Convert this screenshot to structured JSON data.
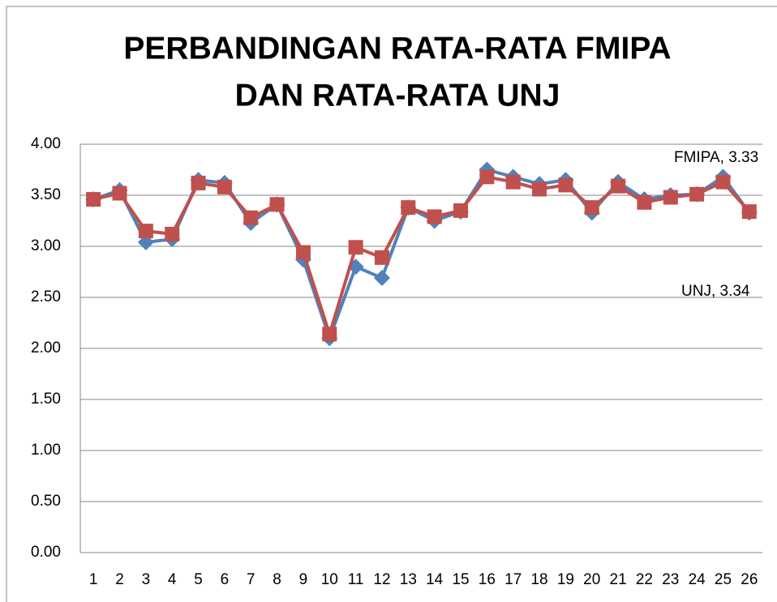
{
  "chart_data": {
    "type": "line",
    "title": [
      "PERBANDINGAN RATA-RATA FMIPA",
      "DAN RATA-RATA UNJ"
    ],
    "categories": [
      "1",
      "2",
      "3",
      "4",
      "5",
      "6",
      "7",
      "8",
      "9",
      "10",
      "11",
      "12",
      "13",
      "14",
      "15",
      "16",
      "17",
      "18",
      "19",
      "20",
      "21",
      "22",
      "23",
      "24",
      "25",
      "26"
    ],
    "series": [
      {
        "name": "FMIPA",
        "color": "#4f81bd",
        "marker": "diamond",
        "values": [
          3.46,
          3.55,
          3.04,
          3.07,
          3.65,
          3.62,
          3.23,
          3.41,
          2.87,
          2.1,
          2.8,
          2.69,
          3.38,
          3.25,
          3.34,
          3.75,
          3.68,
          3.61,
          3.65,
          3.33,
          3.63,
          3.46,
          3.5,
          3.51,
          3.68,
          3.33
        ]
      },
      {
        "name": "UNJ",
        "color": "#c0504d",
        "marker": "square",
        "values": [
          3.46,
          3.52,
          3.15,
          3.12,
          3.62,
          3.58,
          3.28,
          3.41,
          2.94,
          2.14,
          2.99,
          2.89,
          3.38,
          3.29,
          3.35,
          3.68,
          3.63,
          3.56,
          3.6,
          3.38,
          3.59,
          3.43,
          3.48,
          3.51,
          3.63,
          3.34
        ]
      }
    ],
    "annotations": [
      "FMIPA, 3.33",
      "UNJ, 3.34"
    ],
    "ylim": [
      0,
      4
    ],
    "yticks": [
      {
        "value": 0,
        "label": "0.00"
      },
      {
        "value": 0.5,
        "label": "0.50"
      },
      {
        "value": 1,
        "label": "1.00"
      },
      {
        "value": 1.5,
        "label": "1.50"
      },
      {
        "value": 2,
        "label": "2.00"
      },
      {
        "value": 2.5,
        "label": "2.50"
      },
      {
        "value": 3,
        "label": "3.00"
      },
      {
        "value": 3.5,
        "label": "3.50"
      },
      {
        "value": 4,
        "label": "4.00"
      }
    ],
    "grid": true
  }
}
